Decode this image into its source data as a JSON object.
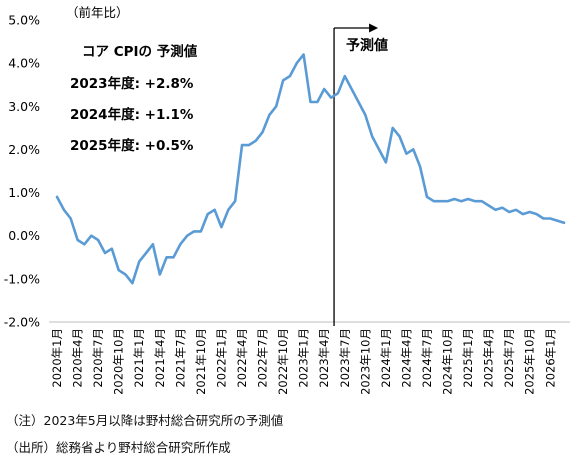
{
  "notes": [
    "（注）2023年5月以降は野村総合研究所の予測値",
    "（出所）総務省より野村総合研究所作成"
  ],
  "colors": {
    "line": "#5b9bd5",
    "axis": "#bfbfbf",
    "text": "#000000",
    "marker": "#000000"
  },
  "chart_data": {
    "type": "line",
    "title": "",
    "unit_label": "（前年比）",
    "xlabel": "",
    "ylabel": "",
    "ylim": [
      -2.0,
      5.0
    ],
    "yticks": [
      -2.0,
      -1.0,
      0.0,
      1.0,
      2.0,
      3.0,
      4.0,
      5.0
    ],
    "ytick_labels": [
      "-2.0%",
      "-1.0%",
      "0.0%",
      "1.0%",
      "2.0%",
      "3.0%",
      "4.0%",
      "5.0%"
    ],
    "grid": false,
    "x": [
      "2020年1月",
      "2020年2月",
      "2020年3月",
      "2020年4月",
      "2020年5月",
      "2020年6月",
      "2020年7月",
      "2020年8月",
      "2020年9月",
      "2020年10月",
      "2020年11月",
      "2020年12月",
      "2021年1月",
      "2021年2月",
      "2021年3月",
      "2021年4月",
      "2021年5月",
      "2021年6月",
      "2021年7月",
      "2021年8月",
      "2021年9月",
      "2021年10月",
      "2021年11月",
      "2021年12月",
      "2022年1月",
      "2022年2月",
      "2022年3月",
      "2022年4月",
      "2022年5月",
      "2022年6月",
      "2022年7月",
      "2022年8月",
      "2022年9月",
      "2022年10月",
      "2022年11月",
      "2022年12月",
      "2023年1月",
      "2023年2月",
      "2023年3月",
      "2023年4月",
      "2023年5月",
      "2023年6月",
      "2023年7月",
      "2023年8月",
      "2023年9月",
      "2023年10月",
      "2023年11月",
      "2023年12月",
      "2024年1月",
      "2024年2月",
      "2024年3月",
      "2024年4月",
      "2024年5月",
      "2024年6月",
      "2024年7月",
      "2024年8月",
      "2024年9月",
      "2024年10月",
      "2024年11月",
      "2024年12月",
      "2025年1月",
      "2025年2月",
      "2025年3月",
      "2025年4月",
      "2025年5月",
      "2025年6月",
      "2025年7月",
      "2025年8月",
      "2025年9月",
      "2025年10月",
      "2025年11月",
      "2025年12月",
      "2026年1月",
      "2026年2月",
      "2026年3月"
    ],
    "xtick_labels": [
      "2020年1月",
      "2020年4月",
      "2020年7月",
      "2020年10月",
      "2021年1月",
      "2021年4月",
      "2021年7月",
      "2021年10月",
      "2022年1月",
      "2022年4月",
      "2022年7月",
      "2022年10月",
      "2023年1月",
      "2023年4月",
      "2023年7月",
      "2023年10月",
      "2024年1月",
      "2024年4月",
      "2024年7月",
      "2024年10月",
      "2025年1月",
      "2025年4月",
      "2025年7月",
      "2025年10月",
      "2026年1月"
    ],
    "series": [
      {
        "name": "",
        "values": [
          0.9,
          0.6,
          0.4,
          -0.1,
          -0.2,
          0.0,
          -0.1,
          -0.4,
          -0.3,
          -0.8,
          -0.9,
          -1.1,
          -0.6,
          -0.4,
          -0.2,
          -0.9,
          -0.5,
          -0.5,
          -0.2,
          0.0,
          0.1,
          0.1,
          0.5,
          0.6,
          0.2,
          0.6,
          0.8,
          2.1,
          2.1,
          2.2,
          2.4,
          2.8,
          3.0,
          3.6,
          3.7,
          4.0,
          4.2,
          3.1,
          3.1,
          3.4,
          3.2,
          3.3,
          3.7,
          3.4,
          3.1,
          2.8,
          2.3,
          2.0,
          1.7,
          2.5,
          2.3,
          1.9,
          2.0,
          1.6,
          0.9,
          0.8,
          0.8,
          0.8,
          0.85,
          0.8,
          0.85,
          0.8,
          0.8,
          0.7,
          0.6,
          0.65,
          0.55,
          0.6,
          0.5,
          0.55,
          0.5,
          0.4,
          0.4,
          0.35,
          0.3
        ]
      }
    ],
    "forecast_start": "2023年5月",
    "annotations": {
      "forecast_label": "予測値",
      "box_title": "コア CPIの 予測値",
      "box_lines": [
        "2023年度: +2.8%",
        "2024年度: +1.1%",
        "2025年度: +0.5%"
      ]
    }
  }
}
